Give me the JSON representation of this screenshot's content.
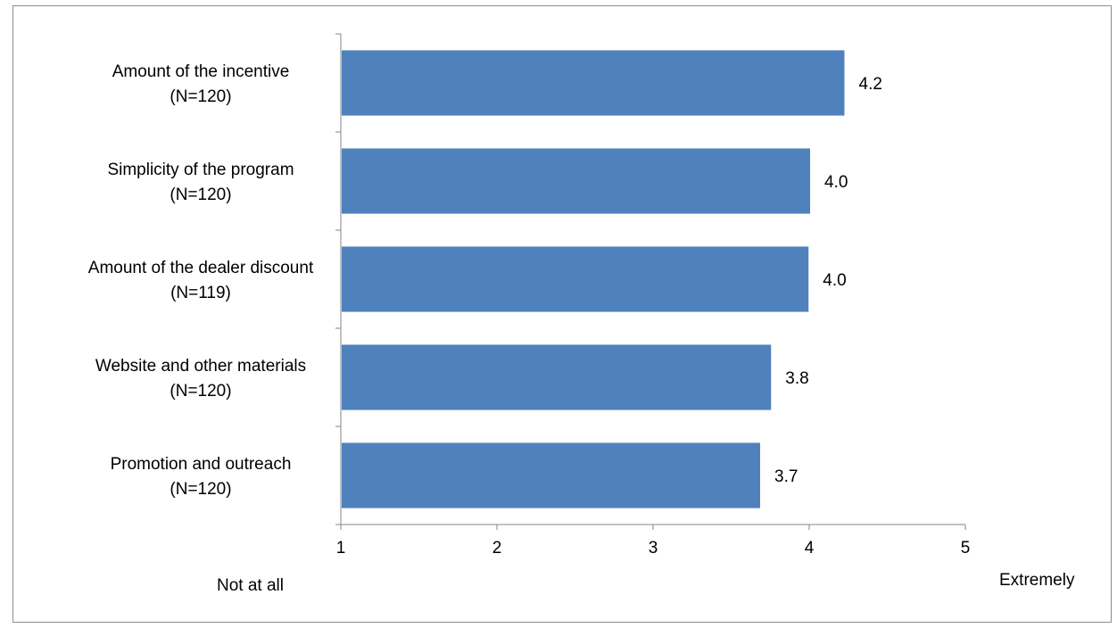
{
  "chart_data": {
    "type": "bar",
    "orientation": "horizontal",
    "categories": [
      [
        "Amount of the incentive",
        "(N=120)"
      ],
      [
        "Simplicity of the program",
        "(N=120)"
      ],
      [
        "Amount of the dealer discount",
        "(N=119)"
      ],
      [
        "Website and other materials",
        "(N=120)"
      ],
      [
        "Promotion and outreach",
        "(N=120)"
      ]
    ],
    "values": [
      4.22,
      4.0,
      3.99,
      3.75,
      3.68
    ],
    "value_labels": [
      "4.2",
      "4.0",
      "4.0",
      "3.8",
      "3.7"
    ],
    "xlim": [
      1,
      5
    ],
    "xticks": [
      "1",
      "2",
      "3",
      "4",
      "5"
    ],
    "bar_color": "#4f81bd",
    "grid": false,
    "legend": "none"
  },
  "scale_labels": {
    "low": "Not at all",
    "high": "Extremely"
  }
}
